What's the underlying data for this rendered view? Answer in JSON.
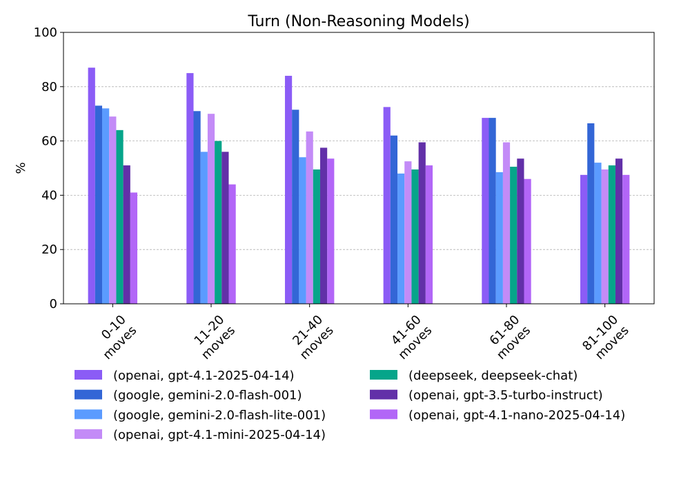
{
  "chart_data": {
    "type": "bar",
    "title": "Turn (Non-Reasoning Models)",
    "xlabel": "",
    "ylabel": "%",
    "ylim": [
      0,
      100
    ],
    "yticks": [
      0,
      20,
      40,
      60,
      80,
      100
    ],
    "grid": "y-dashed",
    "legend_position": "bottom",
    "categories": [
      [
        "0-10",
        "moves"
      ],
      [
        "11-20",
        "moves"
      ],
      [
        "21-40",
        "moves"
      ],
      [
        "41-60",
        "moves"
      ],
      [
        "61-80",
        "moves"
      ],
      [
        "81-100",
        "moves"
      ]
    ],
    "series": [
      {
        "name": "(openai, gpt-4.1-2025-04-14)",
        "color": "#8B5CF6",
        "values": [
          87,
          85,
          84,
          72.5,
          68.5,
          47.5
        ]
      },
      {
        "name": "(google, gemini-2.0-flash-001)",
        "color": "#3366D6",
        "values": [
          73,
          71,
          71.5,
          62,
          68.5,
          66.5
        ]
      },
      {
        "name": "(google, gemini-2.0-flash-lite-001)",
        "color": "#5B9BFF",
        "values": [
          72,
          56,
          54,
          48,
          48.5,
          52
        ]
      },
      {
        "name": "(openai, gpt-4.1-mini-2025-04-14)",
        "color": "#C38BF7",
        "values": [
          69,
          70,
          63.5,
          52.5,
          59.5,
          49.5
        ]
      },
      {
        "name": "(deepseek, deepseek-chat)",
        "color": "#06A58A",
        "values": [
          64,
          60,
          49.5,
          49.5,
          50.5,
          51
        ]
      },
      {
        "name": "(openai, gpt-3.5-turbo-instruct)",
        "color": "#6230A8",
        "values": [
          51,
          56,
          57.5,
          59.5,
          53.5,
          53.5
        ]
      },
      {
        "name": "(openai, gpt-4.1-nano-2025-04-14)",
        "color": "#B266F7",
        "values": [
          41,
          44,
          53.5,
          51,
          46,
          47.5
        ]
      }
    ]
  }
}
